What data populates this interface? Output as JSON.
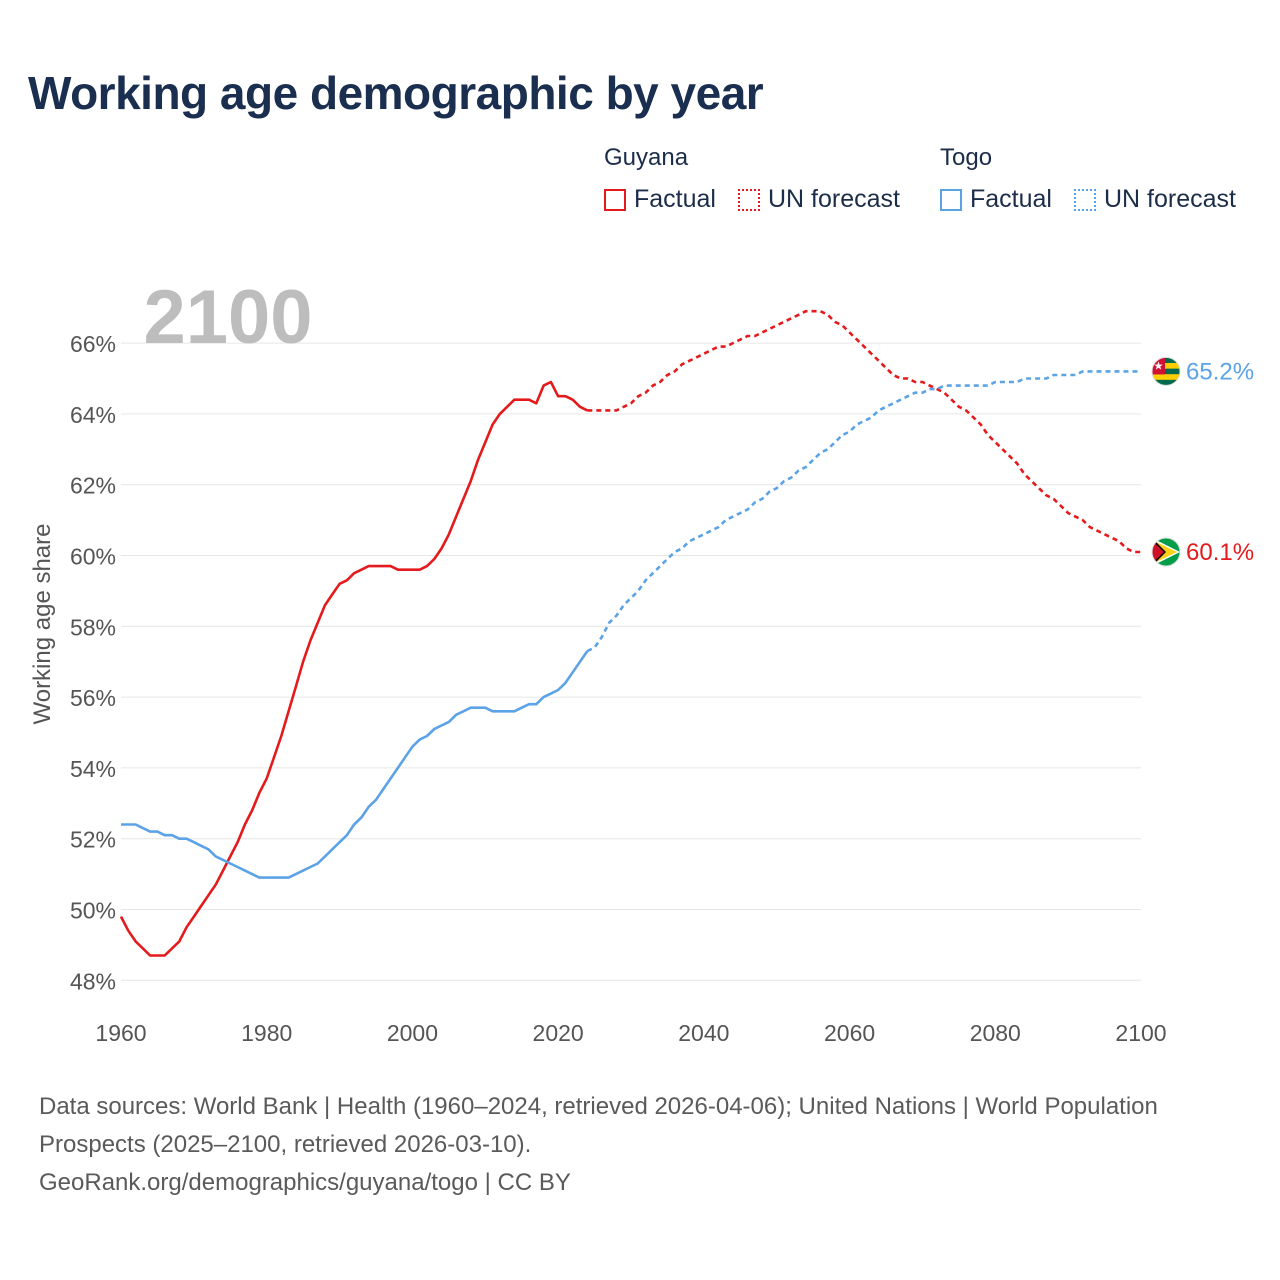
{
  "title": "Working age demographic by year",
  "legend": {
    "groups": [
      {
        "name": "Guyana",
        "color": "#e41a1c",
        "factual_label": "Factual",
        "forecast_label": "UN forecast"
      },
      {
        "name": "Togo",
        "color": "#5ba3e6",
        "factual_label": "Factual",
        "forecast_label": "UN forecast"
      }
    ]
  },
  "footer": {
    "sources": "Data sources: World Bank | Health (1960–2024, retrieved 2026-04-06); United Nations | World Population Prospects (2025–2100, retrieved 2026-03-10).",
    "credit": "GeoRank.org/demographics/guyana/togo | CC BY"
  },
  "chart_data": {
    "type": "line",
    "title": "Working age demographic by year",
    "year_watermark": "2100",
    "ylabel": "Working age share",
    "xlabel": "",
    "xlim": [
      1960,
      2100
    ],
    "ylim": [
      47.5,
      67.5
    ],
    "x_ticks": [
      1960,
      1980,
      2000,
      2020,
      2040,
      2060,
      2080,
      2100
    ],
    "x_tick_labels": [
      "1960",
      "1980",
      "2000",
      "2020",
      "2040",
      "2060",
      "2080",
      "2100"
    ],
    "y_ticks": [
      48,
      50,
      52,
      54,
      56,
      58,
      60,
      62,
      64,
      66
    ],
    "y_tick_labels": [
      "48%",
      "50%",
      "52%",
      "54%",
      "56%",
      "58%",
      "60%",
      "62%",
      "64%",
      "66%"
    ],
    "factual_end_year": 2024,
    "series": [
      {
        "name": "Guyana",
        "color": "#e41a1c",
        "end_label": "60.1%",
        "flag": "guyana-flag",
        "points": [
          [
            1960,
            49.8
          ],
          [
            1961,
            49.4
          ],
          [
            1962,
            49.1
          ],
          [
            1963,
            48.9
          ],
          [
            1964,
            48.7
          ],
          [
            1965,
            48.7
          ],
          [
            1966,
            48.7
          ],
          [
            1967,
            48.9
          ],
          [
            1968,
            49.1
          ],
          [
            1969,
            49.5
          ],
          [
            1970,
            49.8
          ],
          [
            1971,
            50.1
          ],
          [
            1972,
            50.4
          ],
          [
            1973,
            50.7
          ],
          [
            1974,
            51.1
          ],
          [
            1975,
            51.5
          ],
          [
            1976,
            51.9
          ],
          [
            1977,
            52.4
          ],
          [
            1978,
            52.8
          ],
          [
            1979,
            53.3
          ],
          [
            1980,
            53.7
          ],
          [
            1981,
            54.3
          ],
          [
            1982,
            54.9
          ],
          [
            1983,
            55.6
          ],
          [
            1984,
            56.3
          ],
          [
            1985,
            57.0
          ],
          [
            1986,
            57.6
          ],
          [
            1987,
            58.1
          ],
          [
            1988,
            58.6
          ],
          [
            1989,
            58.9
          ],
          [
            1990,
            59.2
          ],
          [
            1991,
            59.3
          ],
          [
            1992,
            59.5
          ],
          [
            1993,
            59.6
          ],
          [
            1994,
            59.7
          ],
          [
            1995,
            59.7
          ],
          [
            1996,
            59.7
          ],
          [
            1997,
            59.7
          ],
          [
            1998,
            59.6
          ],
          [
            1999,
            59.6
          ],
          [
            2000,
            59.6
          ],
          [
            2001,
            59.6
          ],
          [
            2002,
            59.7
          ],
          [
            2003,
            59.9
          ],
          [
            2004,
            60.2
          ],
          [
            2005,
            60.6
          ],
          [
            2006,
            61.1
          ],
          [
            2007,
            61.6
          ],
          [
            2008,
            62.1
          ],
          [
            2009,
            62.7
          ],
          [
            2010,
            63.2
          ],
          [
            2011,
            63.7
          ],
          [
            2012,
            64.0
          ],
          [
            2013,
            64.2
          ],
          [
            2014,
            64.4
          ],
          [
            2015,
            64.4
          ],
          [
            2016,
            64.4
          ],
          [
            2017,
            64.3
          ],
          [
            2018,
            64.8
          ],
          [
            2019,
            64.9
          ],
          [
            2020,
            64.5
          ],
          [
            2021,
            64.5
          ],
          [
            2022,
            64.4
          ],
          [
            2023,
            64.2
          ],
          [
            2024,
            64.1
          ],
          [
            2025,
            64.1
          ],
          [
            2026,
            64.1
          ],
          [
            2027,
            64.1
          ],
          [
            2028,
            64.1
          ],
          [
            2029,
            64.2
          ],
          [
            2030,
            64.3
          ],
          [
            2031,
            64.5
          ],
          [
            2032,
            64.6
          ],
          [
            2033,
            64.8
          ],
          [
            2034,
            64.9
          ],
          [
            2035,
            65.1
          ],
          [
            2036,
            65.2
          ],
          [
            2037,
            65.4
          ],
          [
            2038,
            65.5
          ],
          [
            2039,
            65.6
          ],
          [
            2040,
            65.7
          ],
          [
            2041,
            65.8
          ],
          [
            2042,
            65.9
          ],
          [
            2043,
            65.9
          ],
          [
            2044,
            66.0
          ],
          [
            2045,
            66.1
          ],
          [
            2046,
            66.2
          ],
          [
            2047,
            66.2
          ],
          [
            2048,
            66.3
          ],
          [
            2049,
            66.4
          ],
          [
            2050,
            66.5
          ],
          [
            2051,
            66.6
          ],
          [
            2052,
            66.7
          ],
          [
            2053,
            66.8
          ],
          [
            2054,
            66.9
          ],
          [
            2055,
            66.9
          ],
          [
            2056,
            66.9
          ],
          [
            2057,
            66.8
          ],
          [
            2058,
            66.6
          ],
          [
            2059,
            66.5
          ],
          [
            2060,
            66.3
          ],
          [
            2061,
            66.1
          ],
          [
            2062,
            65.9
          ],
          [
            2063,
            65.7
          ],
          [
            2064,
            65.5
          ],
          [
            2065,
            65.3
          ],
          [
            2066,
            65.1
          ],
          [
            2067,
            65.0
          ],
          [
            2068,
            65.0
          ],
          [
            2069,
            64.9
          ],
          [
            2070,
            64.9
          ],
          [
            2071,
            64.8
          ],
          [
            2072,
            64.7
          ],
          [
            2073,
            64.6
          ],
          [
            2074,
            64.4
          ],
          [
            2075,
            64.2
          ],
          [
            2076,
            64.1
          ],
          [
            2077,
            63.9
          ],
          [
            2078,
            63.7
          ],
          [
            2079,
            63.4
          ],
          [
            2080,
            63.2
          ],
          [
            2081,
            63.0
          ],
          [
            2082,
            62.8
          ],
          [
            2083,
            62.6
          ],
          [
            2084,
            62.3
          ],
          [
            2085,
            62.1
          ],
          [
            2086,
            61.9
          ],
          [
            2087,
            61.7
          ],
          [
            2088,
            61.6
          ],
          [
            2089,
            61.4
          ],
          [
            2090,
            61.2
          ],
          [
            2091,
            61.1
          ],
          [
            2092,
            61.0
          ],
          [
            2093,
            60.8
          ],
          [
            2094,
            60.7
          ],
          [
            2095,
            60.6
          ],
          [
            2096,
            60.5
          ],
          [
            2097,
            60.4
          ],
          [
            2098,
            60.2
          ],
          [
            2099,
            60.1
          ],
          [
            2100,
            60.1
          ]
        ]
      },
      {
        "name": "Togo",
        "color": "#5ba3e6",
        "end_label": "65.2%",
        "flag": "togo-flag",
        "points": [
          [
            1960,
            52.4
          ],
          [
            1961,
            52.4
          ],
          [
            1962,
            52.4
          ],
          [
            1963,
            52.3
          ],
          [
            1964,
            52.2
          ],
          [
            1965,
            52.2
          ],
          [
            1966,
            52.1
          ],
          [
            1967,
            52.1
          ],
          [
            1968,
            52.0
          ],
          [
            1969,
            52.0
          ],
          [
            1970,
            51.9
          ],
          [
            1971,
            51.8
          ],
          [
            1972,
            51.7
          ],
          [
            1973,
            51.5
          ],
          [
            1974,
            51.4
          ],
          [
            1975,
            51.3
          ],
          [
            1976,
            51.2
          ],
          [
            1977,
            51.1
          ],
          [
            1978,
            51.0
          ],
          [
            1979,
            50.9
          ],
          [
            1980,
            50.9
          ],
          [
            1981,
            50.9
          ],
          [
            1982,
            50.9
          ],
          [
            1983,
            50.9
          ],
          [
            1984,
            51.0
          ],
          [
            1985,
            51.1
          ],
          [
            1986,
            51.2
          ],
          [
            1987,
            51.3
          ],
          [
            1988,
            51.5
          ],
          [
            1989,
            51.7
          ],
          [
            1990,
            51.9
          ],
          [
            1991,
            52.1
          ],
          [
            1992,
            52.4
          ],
          [
            1993,
            52.6
          ],
          [
            1994,
            52.9
          ],
          [
            1995,
            53.1
          ],
          [
            1996,
            53.4
          ],
          [
            1997,
            53.7
          ],
          [
            1998,
            54.0
          ],
          [
            1999,
            54.3
          ],
          [
            2000,
            54.6
          ],
          [
            2001,
            54.8
          ],
          [
            2002,
            54.9
          ],
          [
            2003,
            55.1
          ],
          [
            2004,
            55.2
          ],
          [
            2005,
            55.3
          ],
          [
            2006,
            55.5
          ],
          [
            2007,
            55.6
          ],
          [
            2008,
            55.7
          ],
          [
            2009,
            55.7
          ],
          [
            2010,
            55.7
          ],
          [
            2011,
            55.6
          ],
          [
            2012,
            55.6
          ],
          [
            2013,
            55.6
          ],
          [
            2014,
            55.6
          ],
          [
            2015,
            55.7
          ],
          [
            2016,
            55.8
          ],
          [
            2017,
            55.8
          ],
          [
            2018,
            56.0
          ],
          [
            2019,
            56.1
          ],
          [
            2020,
            56.2
          ],
          [
            2021,
            56.4
          ],
          [
            2022,
            56.7
          ],
          [
            2023,
            57.0
          ],
          [
            2024,
            57.3
          ],
          [
            2025,
            57.4
          ],
          [
            2026,
            57.7
          ],
          [
            2027,
            58.1
          ],
          [
            2028,
            58.3
          ],
          [
            2029,
            58.6
          ],
          [
            2030,
            58.8
          ],
          [
            2031,
            59.0
          ],
          [
            2032,
            59.3
          ],
          [
            2033,
            59.5
          ],
          [
            2034,
            59.7
          ],
          [
            2035,
            59.9
          ],
          [
            2036,
            60.1
          ],
          [
            2037,
            60.2
          ],
          [
            2038,
            60.4
          ],
          [
            2039,
            60.5
          ],
          [
            2040,
            60.6
          ],
          [
            2041,
            60.7
          ],
          [
            2042,
            60.8
          ],
          [
            2043,
            61.0
          ],
          [
            2044,
            61.1
          ],
          [
            2045,
            61.2
          ],
          [
            2046,
            61.3
          ],
          [
            2047,
            61.5
          ],
          [
            2048,
            61.6
          ],
          [
            2049,
            61.8
          ],
          [
            2050,
            61.9
          ],
          [
            2051,
            62.1
          ],
          [
            2052,
            62.2
          ],
          [
            2053,
            62.4
          ],
          [
            2054,
            62.5
          ],
          [
            2055,
            62.7
          ],
          [
            2056,
            62.9
          ],
          [
            2057,
            63.0
          ],
          [
            2058,
            63.2
          ],
          [
            2059,
            63.4
          ],
          [
            2060,
            63.5
          ],
          [
            2061,
            63.7
          ],
          [
            2062,
            63.8
          ],
          [
            2063,
            63.9
          ],
          [
            2064,
            64.1
          ],
          [
            2065,
            64.2
          ],
          [
            2066,
            64.3
          ],
          [
            2067,
            64.4
          ],
          [
            2068,
            64.5
          ],
          [
            2069,
            64.6
          ],
          [
            2070,
            64.6
          ],
          [
            2071,
            64.7
          ],
          [
            2072,
            64.7
          ],
          [
            2073,
            64.8
          ],
          [
            2074,
            64.8
          ],
          [
            2075,
            64.8
          ],
          [
            2076,
            64.8
          ],
          [
            2077,
            64.8
          ],
          [
            2078,
            64.8
          ],
          [
            2079,
            64.8
          ],
          [
            2080,
            64.9
          ],
          [
            2081,
            64.9
          ],
          [
            2082,
            64.9
          ],
          [
            2083,
            64.9
          ],
          [
            2084,
            65.0
          ],
          [
            2085,
            65.0
          ],
          [
            2086,
            65.0
          ],
          [
            2087,
            65.0
          ],
          [
            2088,
            65.1
          ],
          [
            2089,
            65.1
          ],
          [
            2090,
            65.1
          ],
          [
            2091,
            65.1
          ],
          [
            2092,
            65.2
          ],
          [
            2093,
            65.2
          ],
          [
            2094,
            65.2
          ],
          [
            2095,
            65.2
          ],
          [
            2096,
            65.2
          ],
          [
            2097,
            65.2
          ],
          [
            2098,
            65.2
          ],
          [
            2099,
            65.2
          ],
          [
            2100,
            65.2
          ]
        ]
      }
    ]
  }
}
